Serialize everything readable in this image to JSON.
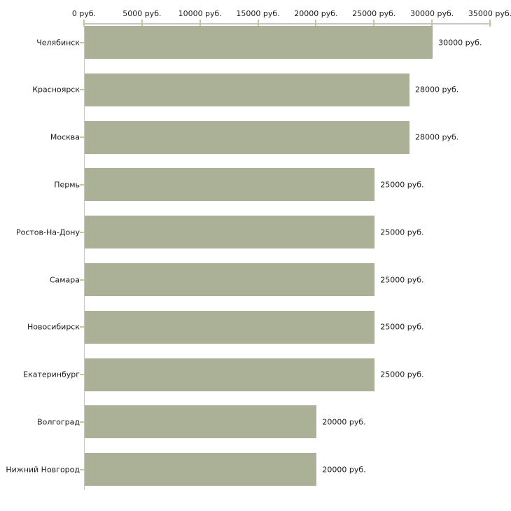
{
  "chart_data": {
    "type": "bar",
    "orientation": "horizontal",
    "title": "",
    "xlabel": "",
    "ylabel": "",
    "unit": "руб.",
    "categories": [
      "Челябинск",
      "Красноярск",
      "Москва",
      "Пермь",
      "Ростов-На-Дону",
      "Самара",
      "Новосибирск",
      "Екатеринбург",
      "Волгоград",
      "Нижний Новгород"
    ],
    "values": [
      30000,
      28000,
      28000,
      25000,
      25000,
      25000,
      25000,
      25000,
      20000,
      20000
    ],
    "value_labels": [
      "30000 руб.",
      "28000 руб.",
      "28000 руб.",
      "25000 руб.",
      "25000 руб.",
      "25000 руб.",
      "25000 руб.",
      "25000 руб.",
      "20000 руб.",
      "20000 руб."
    ],
    "x_tick_labels": [
      "0 руб.",
      "5000 руб.",
      "10000 руб.",
      "15000 руб.",
      "20000 руб.",
      "25000 руб.",
      "30000 руб.",
      "35000 руб."
    ],
    "x_tick_values": [
      0,
      5000,
      10000,
      15000,
      20000,
      25000,
      30000,
      35000
    ],
    "xlim": [
      0,
      35000
    ],
    "grid": false,
    "legend": "none",
    "colors": {
      "bar_fill": "#abb196",
      "axis_line": "#c6c6c6",
      "tick_mark": "#c6c795",
      "text": "#1a1a1a",
      "background": "#ffffff"
    }
  }
}
